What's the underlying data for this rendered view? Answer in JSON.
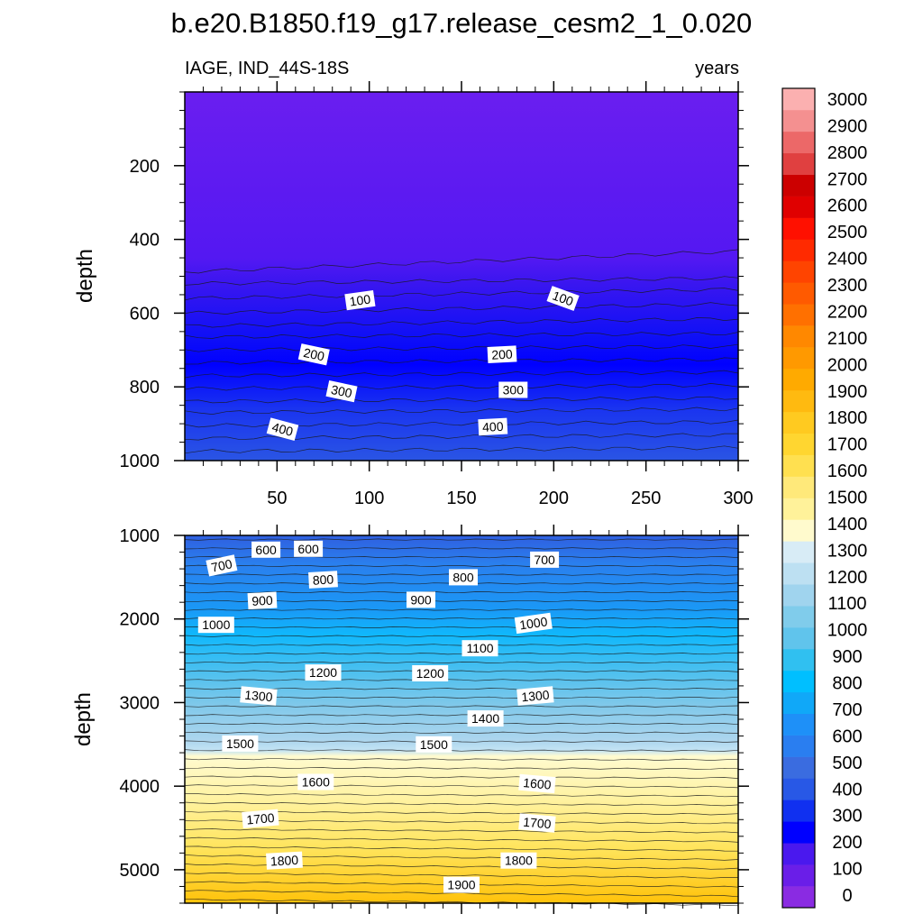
{
  "title": "b.e20.B1850.f19_g17.release_cesm2_1_0.020",
  "subtitle_left": "IAGE, IND_44S-18S",
  "subtitle_right": "years",
  "chart_data": [
    {
      "type": "heatmap",
      "panel": "upper",
      "xlabel": "",
      "ylabel": "depth",
      "xlim": [
        0,
        300
      ],
      "ylim": [
        1000,
        0
      ],
      "x_ticks": [
        50,
        100,
        150,
        200,
        250,
        300
      ],
      "y_ticks": [
        200,
        400,
        600,
        800,
        1000
      ],
      "contour_labels": [
        {
          "text": "100",
          "x": 95,
          "y": 565,
          "angle": -8
        },
        {
          "text": "100",
          "x": 205,
          "y": 560,
          "angle": 20
        },
        {
          "text": "200",
          "x": 70,
          "y": 712,
          "angle": 12
        },
        {
          "text": "200",
          "x": 172,
          "y": 712,
          "angle": -3
        },
        {
          "text": "300",
          "x": 85,
          "y": 812,
          "angle": 12
        },
        {
          "text": "300",
          "x": 178,
          "y": 808,
          "angle": 0
        },
        {
          "text": "400",
          "x": 53,
          "y": 915,
          "angle": 15
        },
        {
          "text": "400",
          "x": 167,
          "y": 908,
          "angle": -3
        }
      ]
    },
    {
      "type": "heatmap",
      "panel": "lower",
      "xlabel": "",
      "ylabel": "depth",
      "xlim": [
        0,
        300
      ],
      "ylim": [
        5400,
        1000
      ],
      "y_ticks": [
        1000,
        2000,
        3000,
        4000,
        5000
      ],
      "contour_labels": [
        {
          "text": "600",
          "x": 44,
          "y": 1170,
          "angle": 0
        },
        {
          "text": "600",
          "x": 67,
          "y": 1160,
          "angle": 0
        },
        {
          "text": "700",
          "x": 20,
          "y": 1360,
          "angle": -12
        },
        {
          "text": "700",
          "x": 195,
          "y": 1290,
          "angle": 0
        },
        {
          "text": "800",
          "x": 75,
          "y": 1530,
          "angle": -3
        },
        {
          "text": "800",
          "x": 151,
          "y": 1500,
          "angle": 0
        },
        {
          "text": "900",
          "x": 42,
          "y": 1780,
          "angle": -3
        },
        {
          "text": "900",
          "x": 128,
          "y": 1770,
          "angle": 0
        },
        {
          "text": "1000",
          "x": 17,
          "y": 2070,
          "angle": 0
        },
        {
          "text": "1000",
          "x": 189,
          "y": 2050,
          "angle": -8
        },
        {
          "text": "1100",
          "x": 160,
          "y": 2350,
          "angle": 0
        },
        {
          "text": "1200",
          "x": 75,
          "y": 2640,
          "angle": 0
        },
        {
          "text": "1200",
          "x": 133,
          "y": 2650,
          "angle": 0
        },
        {
          "text": "1300",
          "x": 40,
          "y": 2920,
          "angle": 5
        },
        {
          "text": "1300",
          "x": 190,
          "y": 2920,
          "angle": -5
        },
        {
          "text": "1400",
          "x": 163,
          "y": 3190,
          "angle": 0
        },
        {
          "text": "1500",
          "x": 30,
          "y": 3490,
          "angle": 0
        },
        {
          "text": "1500",
          "x": 135,
          "y": 3500,
          "angle": 0
        },
        {
          "text": "1600",
          "x": 71,
          "y": 3950,
          "angle": 0
        },
        {
          "text": "1600",
          "x": 191,
          "y": 3970,
          "angle": 5
        },
        {
          "text": "1700",
          "x": 41,
          "y": 4390,
          "angle": -5
        },
        {
          "text": "1700",
          "x": 191,
          "y": 4440,
          "angle": 5
        },
        {
          "text": "1800",
          "x": 54,
          "y": 4890,
          "angle": -3
        },
        {
          "text": "1800",
          "x": 181,
          "y": 4890,
          "angle": 0
        },
        {
          "text": "1900",
          "x": 150,
          "y": 5180,
          "angle": 0
        }
      ]
    }
  ],
  "colorbar": {
    "labels": [
      "0",
      "100",
      "200",
      "300",
      "400",
      "500",
      "600",
      "700",
      "800",
      "900",
      "1000",
      "1100",
      "1200",
      "1300",
      "1400",
      "1500",
      "1600",
      "1700",
      "1800",
      "1900",
      "2000",
      "2100",
      "2200",
      "2300",
      "2400",
      "2500",
      "2600",
      "2700",
      "2800",
      "2900",
      "3000"
    ],
    "colors": [
      "#8a2be2",
      "#6a1ee8",
      "#4a18ee",
      "#0000ff",
      "#1030f0",
      "#2858e6",
      "#3a6ce0",
      "#2a7ef0",
      "#1e90f8",
      "#10a8f8",
      "#00bfff",
      "#30c0f0",
      "#60c4ec",
      "#80cceb",
      "#a0d4ee",
      "#bde0f2",
      "#d8ecf6",
      "#fffacd",
      "#fff29a",
      "#ffe97a",
      "#ffe050",
      "#ffd630",
      "#ffca20",
      "#ffba10",
      "#ffaa00",
      "#ff9900",
      "#ff8800",
      "#ff7000",
      "#ff5a00",
      "#ff4400",
      "#ff2a00",
      "#ff1000",
      "#e00000",
      "#cc0000",
      "#e04040",
      "#ec6868",
      "#f49090",
      "#fbb0b0"
    ]
  }
}
